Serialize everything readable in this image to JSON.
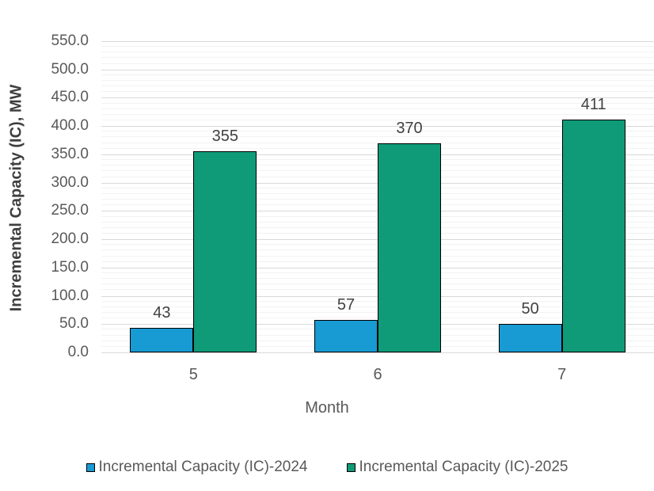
{
  "chart_data": {
    "type": "bar",
    "title": "",
    "xlabel": "Month",
    "ylabel": "Incremental Capacity (IC), MW",
    "categories": [
      "5",
      "6",
      "7"
    ],
    "series": [
      {
        "name": "Incremental Capacity (IC)-2024",
        "color": "#189ad3",
        "values": [
          43,
          57,
          50
        ]
      },
      {
        "name": "Incremental Capacity (IC)-2025",
        "color": "#0f9b78",
        "values": [
          355,
          370,
          411
        ]
      }
    ],
    "ylim": [
      0,
      550
    ],
    "ytick_step": 50,
    "ytick_labels": [
      "0.0",
      "50.0",
      "100.0",
      "150.0",
      "200.0",
      "250.0",
      "300.0",
      "350.0",
      "400.0",
      "450.0",
      "500.0",
      "550.0"
    ],
    "minor_tick_step": 10,
    "grid": {
      "major_horizontal": true,
      "minor_horizontal": true
    },
    "legend_position": "bottom",
    "data_labels": true,
    "bar_border_color": "#000000",
    "axis_line_color": "#d9d9d9"
  }
}
